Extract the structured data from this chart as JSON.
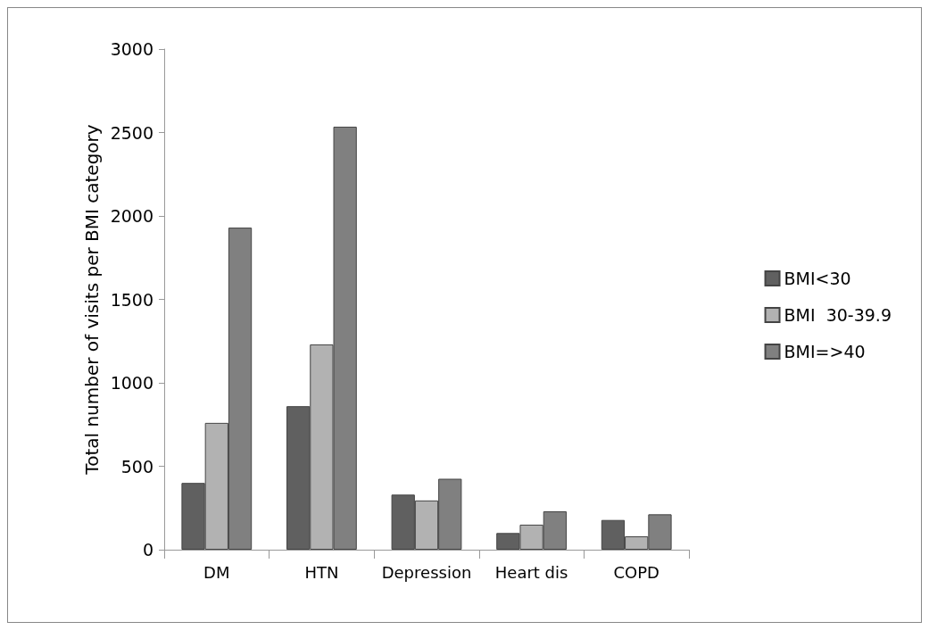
{
  "chart_data": {
    "type": "bar",
    "ylabel": "Total number of visits per BMI category",
    "categories": [
      "DM",
      "HTN",
      "Depression",
      "Heart dis",
      "COPD"
    ],
    "series": [
      {
        "name": "BMI<30",
        "color": "#606060",
        "values": [
          400,
          860,
          330,
          100,
          178
        ]
      },
      {
        "name": "BMI  30-39.9",
        "color": "#b2b2b2",
        "values": [
          760,
          1230,
          295,
          150,
          80
        ]
      },
      {
        "name": "BMI=>40",
        "color": "#808080",
        "values": [
          1930,
          2535,
          425,
          230,
          212
        ]
      }
    ],
    "ylim": [
      0,
      3000
    ],
    "yticks": [
      0,
      500,
      1000,
      1500,
      2000,
      2500,
      3000
    ],
    "grid": false,
    "legend": "right"
  }
}
